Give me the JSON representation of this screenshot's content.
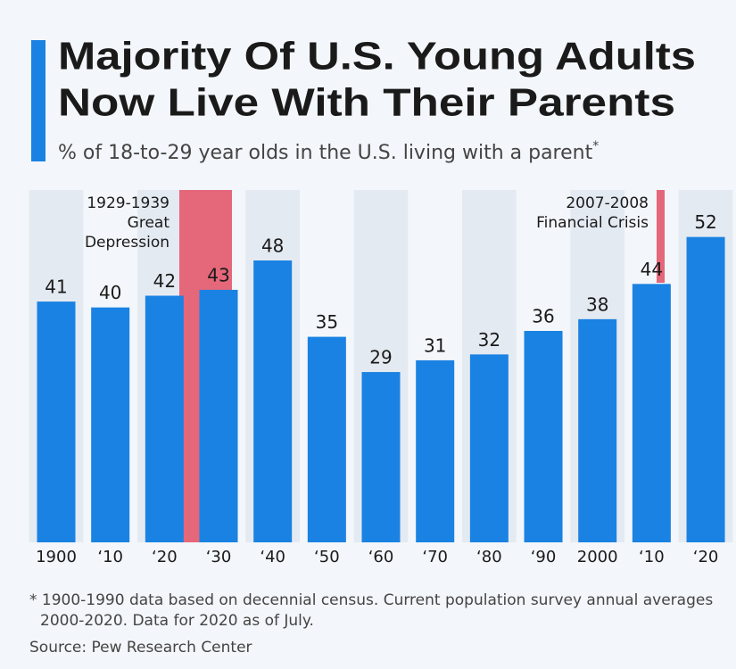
{
  "chart_data": {
    "type": "bar",
    "title": [
      "Majority Of U.S. Young Adults",
      "Now Live With Their Parents"
    ],
    "subtitle": "% of 18-to-29 year olds in the U.S. living with a parent",
    "subtitle_note": "*",
    "categories": [
      "1900",
      "‘10",
      "‘20",
      "‘30",
      "‘40",
      "‘50",
      "‘60",
      "‘70",
      "‘80",
      "‘90",
      "2000",
      "‘10",
      "‘20"
    ],
    "values": [
      41,
      40,
      42,
      43,
      48,
      35,
      29,
      31,
      32,
      36,
      38,
      44,
      52
    ],
    "color": "#1a82e2",
    "ylim": [
      0,
      60
    ],
    "annotations": [
      {
        "text": [
          "1929-1939",
          "Great",
          "Depression"
        ]
      },
      {
        "text": [
          "2007-2008",
          "Financial Crisis"
        ]
      }
    ],
    "footnote": "* 1900-1990 data based on decennial census. Current population survey annual averages 2000-2020. Data for 2020 as of July.",
    "source": "Source: Pew Research Center"
  }
}
